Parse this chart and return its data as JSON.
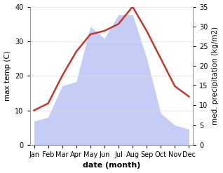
{
  "months": [
    "Jan",
    "Feb",
    "Mar",
    "Apr",
    "May",
    "Jun",
    "Jul",
    "Aug",
    "Sep",
    "Oct",
    "Nov",
    "Dec"
  ],
  "max_temp": [
    10,
    12,
    20,
    27,
    32,
    33,
    35,
    40,
    33,
    25,
    17,
    14
  ],
  "precipitation": [
    6,
    7,
    15,
    16,
    30,
    27,
    33,
    33,
    22,
    8,
    5,
    4
  ],
  "temp_color": "#c0392b",
  "precip_fill_color": "#c5ccf5",
  "precip_edge_color": "#c5ccf5",
  "background_color": "#ffffff",
  "xlabel": "date (month)",
  "ylabel_left": "max temp (C)",
  "ylabel_right": "med. precipitation (kg/m2)",
  "ylim_left": [
    0,
    40
  ],
  "ylim_right": [
    0,
    35
  ],
  "yticks_left": [
    0,
    10,
    20,
    30,
    40
  ],
  "yticks_right": [
    0,
    5,
    10,
    15,
    20,
    25,
    30,
    35
  ],
  "temp_linewidth": 1.8,
  "xlabel_fontsize": 8,
  "ylabel_fontsize": 7.5,
  "tick_fontsize": 7
}
